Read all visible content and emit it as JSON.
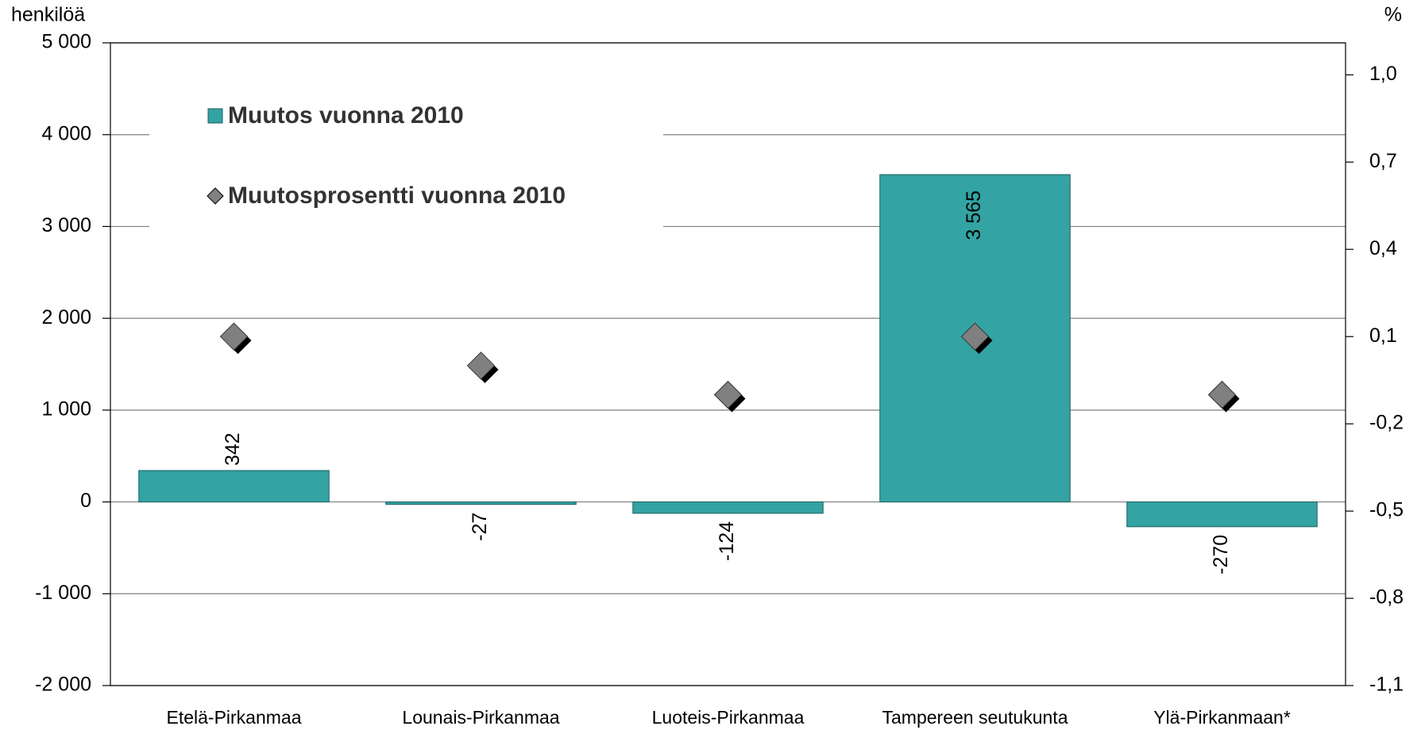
{
  "chart_data": {
    "type": "bar",
    "categories": [
      "Etelä-Pirkanmaa",
      "Lounais-Pirkanmaa",
      "Luoteis-Pirkanmaa",
      "Tampereen seutukunta",
      "Ylä-Pirkanmaan*"
    ],
    "series": [
      {
        "name": "Muutos vuonna 2010",
        "color": "#33a3a3",
        "type": "bar",
        "values": [
          342,
          -27,
          -124,
          3565,
          -270
        ],
        "value_labels": [
          "342",
          "-27",
          "-124",
          "3 565",
          "-270"
        ]
      },
      {
        "name": "Muutosprosentti vuonna 2010",
        "color": "#808080",
        "type": "scatter",
        "axis": "y2",
        "values": [
          0.1,
          0.0,
          -0.1,
          0.1,
          -0.1
        ]
      }
    ],
    "ylabel": "henkilöä",
    "y2label": "%",
    "ylim": [
      -2000,
      5000
    ],
    "yticks": [
      {
        "value": -2000,
        "label": "-2 000"
      },
      {
        "value": -1000,
        "label": "-1 000"
      },
      0,
      {
        "value": 1000,
        "label": "1 000"
      },
      {
        "value": 2000,
        "label": "2 000"
      },
      {
        "value": 3000,
        "label": "3 000"
      },
      {
        "value": 4000,
        "label": "4 000"
      },
      {
        "value": 5000,
        "label": "5 000"
      }
    ],
    "y2lim": [
      -1.1,
      1.11
    ],
    "y2ticks": [
      {
        "value": -1.1,
        "label": "-1,1"
      },
      {
        "value": -0.8,
        "label": "-0,8"
      },
      {
        "value": -0.5,
        "label": "-0,5"
      },
      {
        "value": -0.2,
        "label": "-0,2"
      },
      {
        "value": 0.1,
        "label": "0,1"
      },
      {
        "value": 0.4,
        "label": "0,4"
      },
      {
        "value": 0.7,
        "label": "0,7"
      },
      {
        "value": 1.0,
        "label": "1,0"
      }
    ],
    "grid": true,
    "legend": "upper left"
  }
}
